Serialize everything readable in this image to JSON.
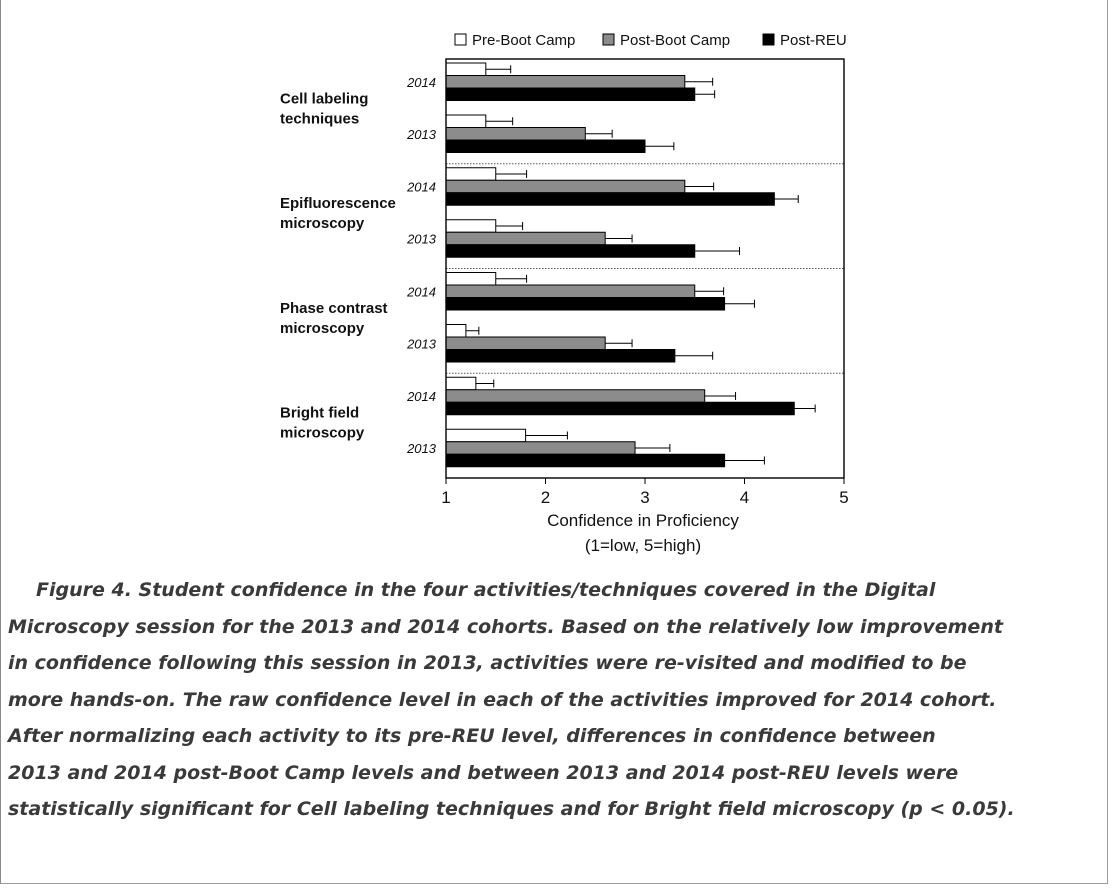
{
  "chart_data": {
    "type": "bar",
    "orientation": "horizontal",
    "xlabel": "Confidence in Proficiency",
    "xlabel_sub": "(1=low, 5=high)",
    "xlim": [
      1,
      5
    ],
    "xticks": [
      "1",
      "2",
      "3",
      "4",
      "5"
    ],
    "legend_position": "top",
    "series": [
      {
        "name": "Pre-Boot Camp",
        "color": "#ffffff"
      },
      {
        "name": "Post-Boot Camp",
        "color": "#8c8c8c"
      },
      {
        "name": "Post-REU",
        "color": "#000000"
      }
    ],
    "groups": [
      {
        "label_lines": [
          "Cell labeling",
          "techniques"
        ],
        "years": [
          {
            "year": "2014",
            "values": [
              1.4,
              3.4,
              3.5
            ],
            "errors": [
              0.25,
              0.28,
              0.2
            ]
          },
          {
            "year": "2013",
            "values": [
              1.4,
              2.4,
              3.0
            ],
            "errors": [
              0.27,
              0.27,
              0.29
            ]
          }
        ]
      },
      {
        "label_lines": [
          "Epifluorescence",
          "microscopy"
        ],
        "years": [
          {
            "year": "2014",
            "values": [
              1.5,
              3.4,
              4.3
            ],
            "errors": [
              0.31,
              0.29,
              0.24
            ]
          },
          {
            "year": "2013",
            "values": [
              1.5,
              2.6,
              3.5
            ],
            "errors": [
              0.27,
              0.27,
              0.45
            ]
          }
        ]
      },
      {
        "label_lines": [
          "Phase contrast",
          "microscopy"
        ],
        "years": [
          {
            "year": "2014",
            "values": [
              1.5,
              3.5,
              3.8
            ],
            "errors": [
              0.31,
              0.29,
              0.3
            ]
          },
          {
            "year": "2013",
            "values": [
              1.2,
              2.6,
              3.3
            ],
            "errors": [
              0.13,
              0.27,
              0.38
            ]
          }
        ]
      },
      {
        "label_lines": [
          "Bright field",
          "microscopy"
        ],
        "years": [
          {
            "year": "2014",
            "values": [
              1.3,
              3.6,
              4.5
            ],
            "errors": [
              0.18,
              0.31,
              0.21
            ]
          },
          {
            "year": "2013",
            "values": [
              1.8,
              2.9,
              3.8
            ],
            "errors": [
              0.42,
              0.35,
              0.4
            ]
          }
        ]
      }
    ]
  },
  "caption_lines": [
    "Figure 4. Student confidence in the four activities/techniques covered in the Digital",
    "Microscopy session for the 2013 and 2014 cohorts. Based on the relatively low improvement",
    "in confidence following this session in 2013, activities were re-visited and modified to be",
    "more hands-on. The raw confidence level in each of the activities improved for 2014 cohort.",
    "After normalizing each activity to its pre-REU level, differences in confidence between",
    "2013 and 2014 post-Boot Camp levels and between 2013 and 2014 post-REU levels were",
    "statistically significant for Cell labeling techniques and for Bright field microscopy (p < 0.05)."
  ]
}
